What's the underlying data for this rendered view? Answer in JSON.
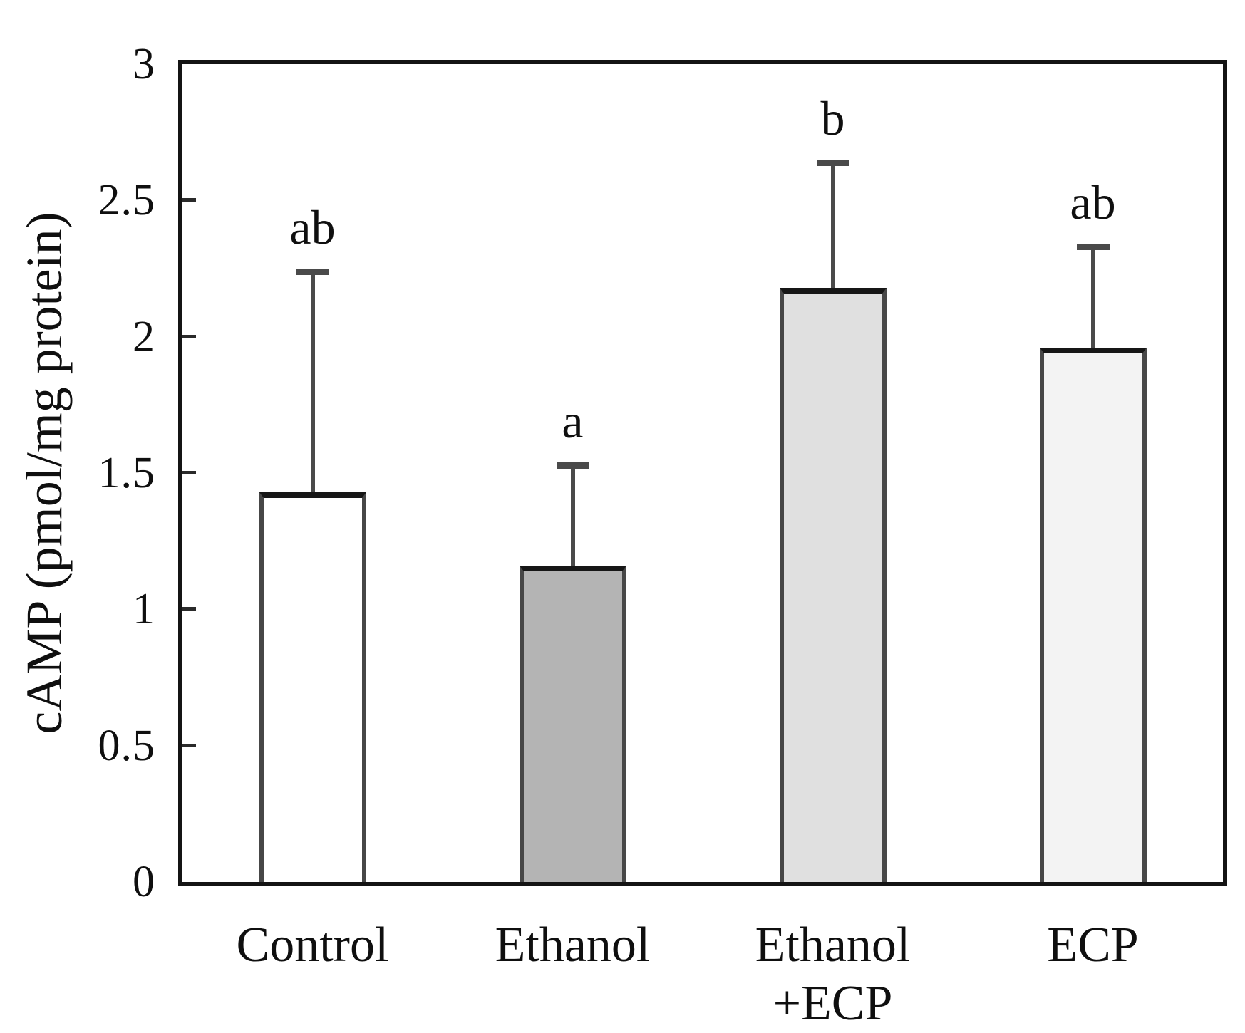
{
  "figure": {
    "background": "#ffffff",
    "text_color": "#0f0f0f",
    "axis_color": "#141414",
    "error_bar_color": "#4a4a4a",
    "bar_side_border_color": "#474747",
    "bar_top_border_color": "#161616"
  },
  "chart_data": {
    "type": "bar",
    "title": "",
    "xlabel": "",
    "ylabel": "cAMP (pmol/mg protein)",
    "ylim": [
      0,
      3
    ],
    "yticks": [
      0,
      0.5,
      1,
      1.5,
      2,
      2.5,
      3
    ],
    "grid": false,
    "legend": false,
    "categories": [
      "Control",
      "Ethanol",
      "Ethanol +ECP",
      "ECP"
    ],
    "category_label_lines": [
      [
        "Control"
      ],
      [
        "Ethanol"
      ],
      [
        "Ethanol",
        "+ECP"
      ],
      [
        "ECP"
      ]
    ],
    "values": [
      1.43,
      1.16,
      2.18,
      1.96
    ],
    "upper_errors": [
      0.81,
      0.37,
      0.46,
      0.37
    ],
    "error_tips": [
      2.24,
      1.53,
      2.64,
      2.33
    ],
    "significance_letters": [
      "ab",
      "a",
      "b",
      "ab"
    ],
    "bar_fill_colors": [
      "#ffffff",
      "#b4b4b4",
      "#e0e0e0",
      "#f3f3f3"
    ]
  }
}
